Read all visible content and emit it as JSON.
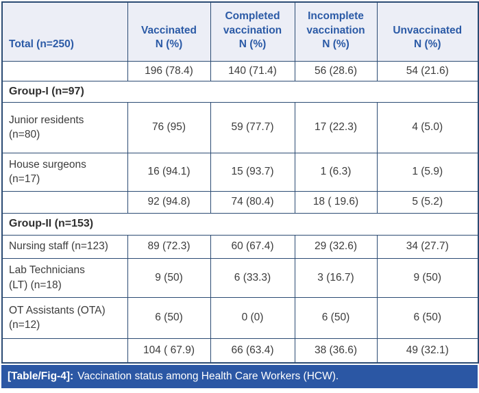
{
  "table": {
    "header": {
      "col0": "Total (n=250)",
      "columns": [
        "Vaccinated\nN (%)",
        "Completed\nvaccination\nN (%)",
        "Incomplete\nvaccination\nN (%)",
        "Unvaccinated\nN (%)"
      ]
    },
    "rows": [
      {
        "type": "data",
        "label": "",
        "values": [
          "196 (78.4)",
          "140 (71.4)",
          "56 (28.6)",
          "54 (21.6)"
        ]
      },
      {
        "type": "group",
        "label": "Group-I (n=97)"
      },
      {
        "type": "data",
        "label": "Junior residents\n(n=80)",
        "values": [
          "76 (95)",
          "59 (77.7)",
          "17 (22.3)",
          "4 (5.0)"
        ]
      },
      {
        "type": "data",
        "label": "House surgeons\n(n=17)",
        "values": [
          "16 (94.1)",
          "15 (93.7)",
          "1 (6.3)",
          "1 (5.9)"
        ]
      },
      {
        "type": "data",
        "label": "",
        "values": [
          "92 (94.8)",
          "74 (80.4)",
          "18 ( 19.6)",
          "5 (5.2)"
        ]
      },
      {
        "type": "group",
        "label": "Group-II (n=153)"
      },
      {
        "type": "data",
        "label": "Nursing staff (n=123)",
        "values": [
          "89 (72.3)",
          "60 (67.4)",
          "29 (32.6)",
          "34 (27.7)"
        ]
      },
      {
        "type": "data",
        "label": "Lab Technicians\n(LT) (n=18)",
        "values": [
          "9 (50)",
          "6 (33.3)",
          "3 (16.7)",
          "9 (50)"
        ]
      },
      {
        "type": "data",
        "label": "OT Assistants (OTA)\n(n=12)",
        "values": [
          "6 (50)",
          "0 (0)",
          "6 (50)",
          "6 (50)"
        ]
      },
      {
        "type": "data",
        "label": "",
        "values": [
          "104 ( 67.9)",
          "66 (63.4)",
          "38 (36.6)",
          "49 (32.1)"
        ]
      }
    ]
  },
  "caption": {
    "label": "[Table/Fig-4]:",
    "text": "Vaccination status among Health Care Workers (HCW)."
  },
  "colors": {
    "header_bg": "#eceef6",
    "header_text": "#2b5aa6",
    "border": "#2a4a72",
    "body_text": "#3b3b3b",
    "caption_bg": "#2b57a4",
    "caption_text": "#ffffff"
  }
}
